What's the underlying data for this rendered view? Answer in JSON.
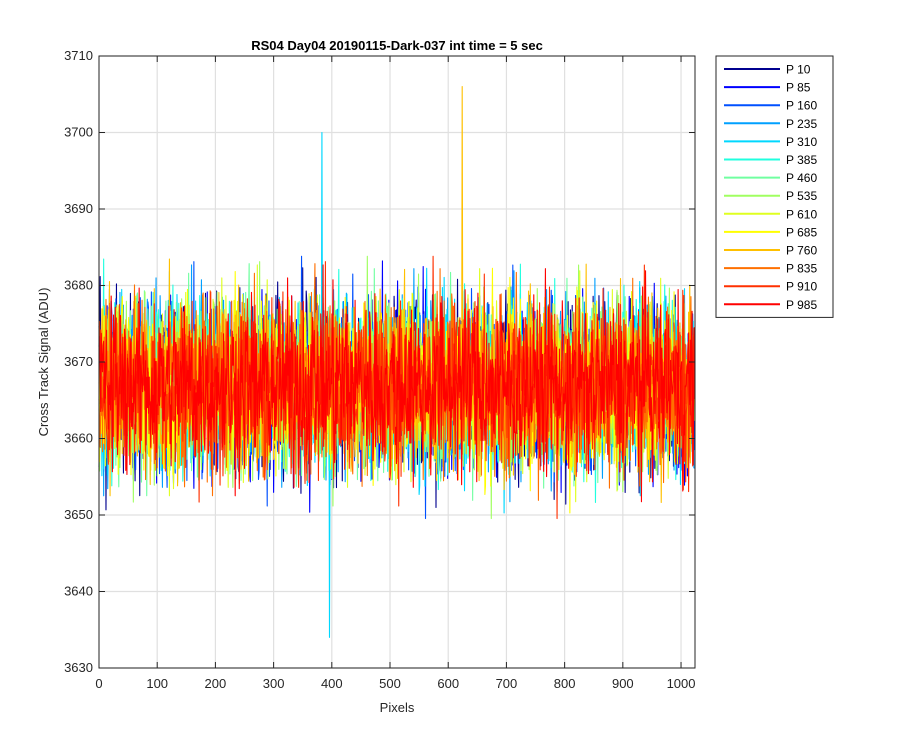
{
  "chart_data": {
    "type": "line",
    "title": "RS04 Day04 20190115-Dark-037 int time = 5 sec",
    "xlabel": "Pixels",
    "ylabel": "Cross Track Signal (ADU)",
    "xlim": [
      0,
      1024
    ],
    "ylim": [
      3630,
      3710
    ],
    "xticks": [
      0,
      100,
      200,
      300,
      400,
      500,
      600,
      700,
      800,
      900,
      1000
    ],
    "yticks": [
      3630,
      3640,
      3650,
      3660,
      3670,
      3680,
      3690,
      3700,
      3710
    ],
    "grid": true,
    "legend_position": "outside-top-right",
    "noise_model": {
      "center": 3667,
      "approx_range": [
        3641,
        3695
      ]
    },
    "series": [
      {
        "name": "P 10",
        "color": "#00008F"
      },
      {
        "name": "P 85",
        "color": "#0000FF"
      },
      {
        "name": "P 160",
        "color": "#0050FF"
      },
      {
        "name": "P 235",
        "color": "#00A0FF"
      },
      {
        "name": "P 310",
        "color": "#00D8FF"
      },
      {
        "name": "P 385",
        "color": "#20FFDF"
      },
      {
        "name": "P 460",
        "color": "#70FFA0"
      },
      {
        "name": "P 535",
        "color": "#A0FF60"
      },
      {
        "name": "P 610",
        "color": "#DFFF20"
      },
      {
        "name": "P 685",
        "color": "#FFFF00"
      },
      {
        "name": "P 760",
        "color": "#FFC000"
      },
      {
        "name": "P 835",
        "color": "#FF7000"
      },
      {
        "name": "P 910",
        "color": "#FF3000"
      },
      {
        "name": "P 985",
        "color": "#FF0000"
      }
    ],
    "extremes": [
      {
        "series": "P 760",
        "x": 624,
        "y": 3706
      },
      {
        "series": "P 310",
        "x": 396,
        "y": 3634
      },
      {
        "series": "P 310",
        "x": 383,
        "y": 3700
      }
    ]
  }
}
